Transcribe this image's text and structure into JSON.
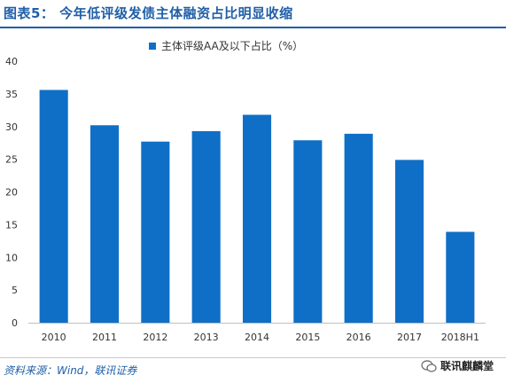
{
  "header": {
    "title": "图表5：  今年低评级发债主体融资占比明显收缩"
  },
  "footer": {
    "source": "资料来源：Wind，联讯证券",
    "watermark": "联讯麒麟堂"
  },
  "colors": {
    "title": "#1f5fa8",
    "bar": "#0f6fc6",
    "axis": "#bfbfbf"
  },
  "chart_data": {
    "type": "bar",
    "categories": [
      "2010",
      "2011",
      "2012",
      "2013",
      "2014",
      "2015",
      "2016",
      "2017",
      "2018H1"
    ],
    "series": [
      {
        "name": "主体评级AA及以下占比（%）",
        "values": [
          35.6,
          30.2,
          27.7,
          29.3,
          31.8,
          27.9,
          28.9,
          24.9,
          13.9
        ]
      }
    ],
    "ylim": [
      0,
      40
    ],
    "yticks": [
      0,
      5,
      10,
      15,
      20,
      25,
      30,
      35,
      40
    ],
    "grid": false,
    "legend": "top-center"
  }
}
